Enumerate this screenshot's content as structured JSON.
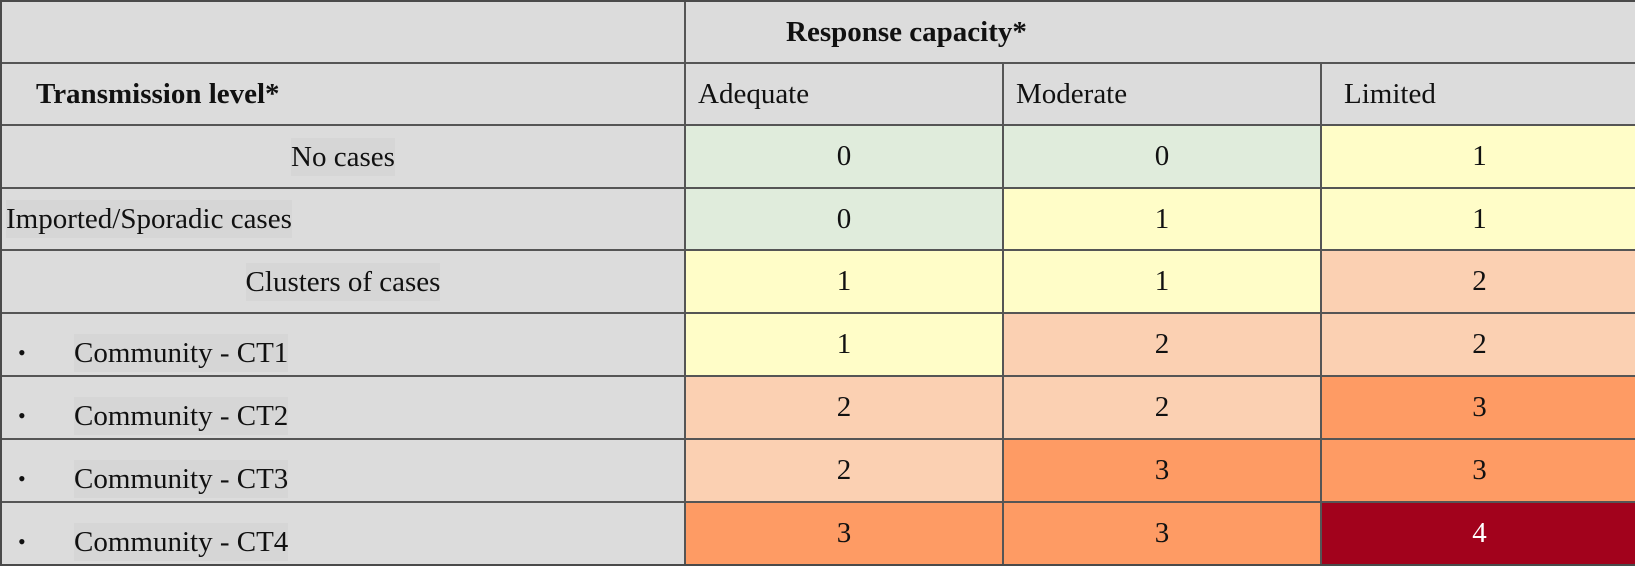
{
  "table": {
    "response_capacity_header": "Response capacity*",
    "transmission_level_header": "Transmission level*",
    "columns": [
      "Adequate",
      "Moderate",
      "Limited"
    ],
    "bullet_glyph": "•",
    "rows": [
      {
        "label": "No cases",
        "bullet": false,
        "values": [
          "0",
          "0",
          "1"
        ]
      },
      {
        "label": "Imported/Sporadic cases",
        "bullet": false,
        "values": [
          "0",
          "1",
          "1"
        ]
      },
      {
        "label": "Clusters of cases",
        "bullet": false,
        "values": [
          "1",
          "1",
          "2"
        ]
      },
      {
        "label": "Community - CT1",
        "bullet": true,
        "values": [
          "1",
          "2",
          "2"
        ]
      },
      {
        "label": "Community - CT2",
        "bullet": true,
        "values": [
          "2",
          "2",
          "3"
        ]
      },
      {
        "label": "Community - CT3",
        "bullet": true,
        "values": [
          "2",
          "3",
          "3"
        ]
      },
      {
        "label": "Community - CT4",
        "bullet": true,
        "values": [
          "3",
          "3",
          "4"
        ]
      }
    ],
    "level_colors": {
      "0": "#e0ecdc",
      "1": "#fffdc8",
      "2": "#fbd0b2",
      "3": "#fe9b64",
      "4": "#a2021c"
    }
  }
}
